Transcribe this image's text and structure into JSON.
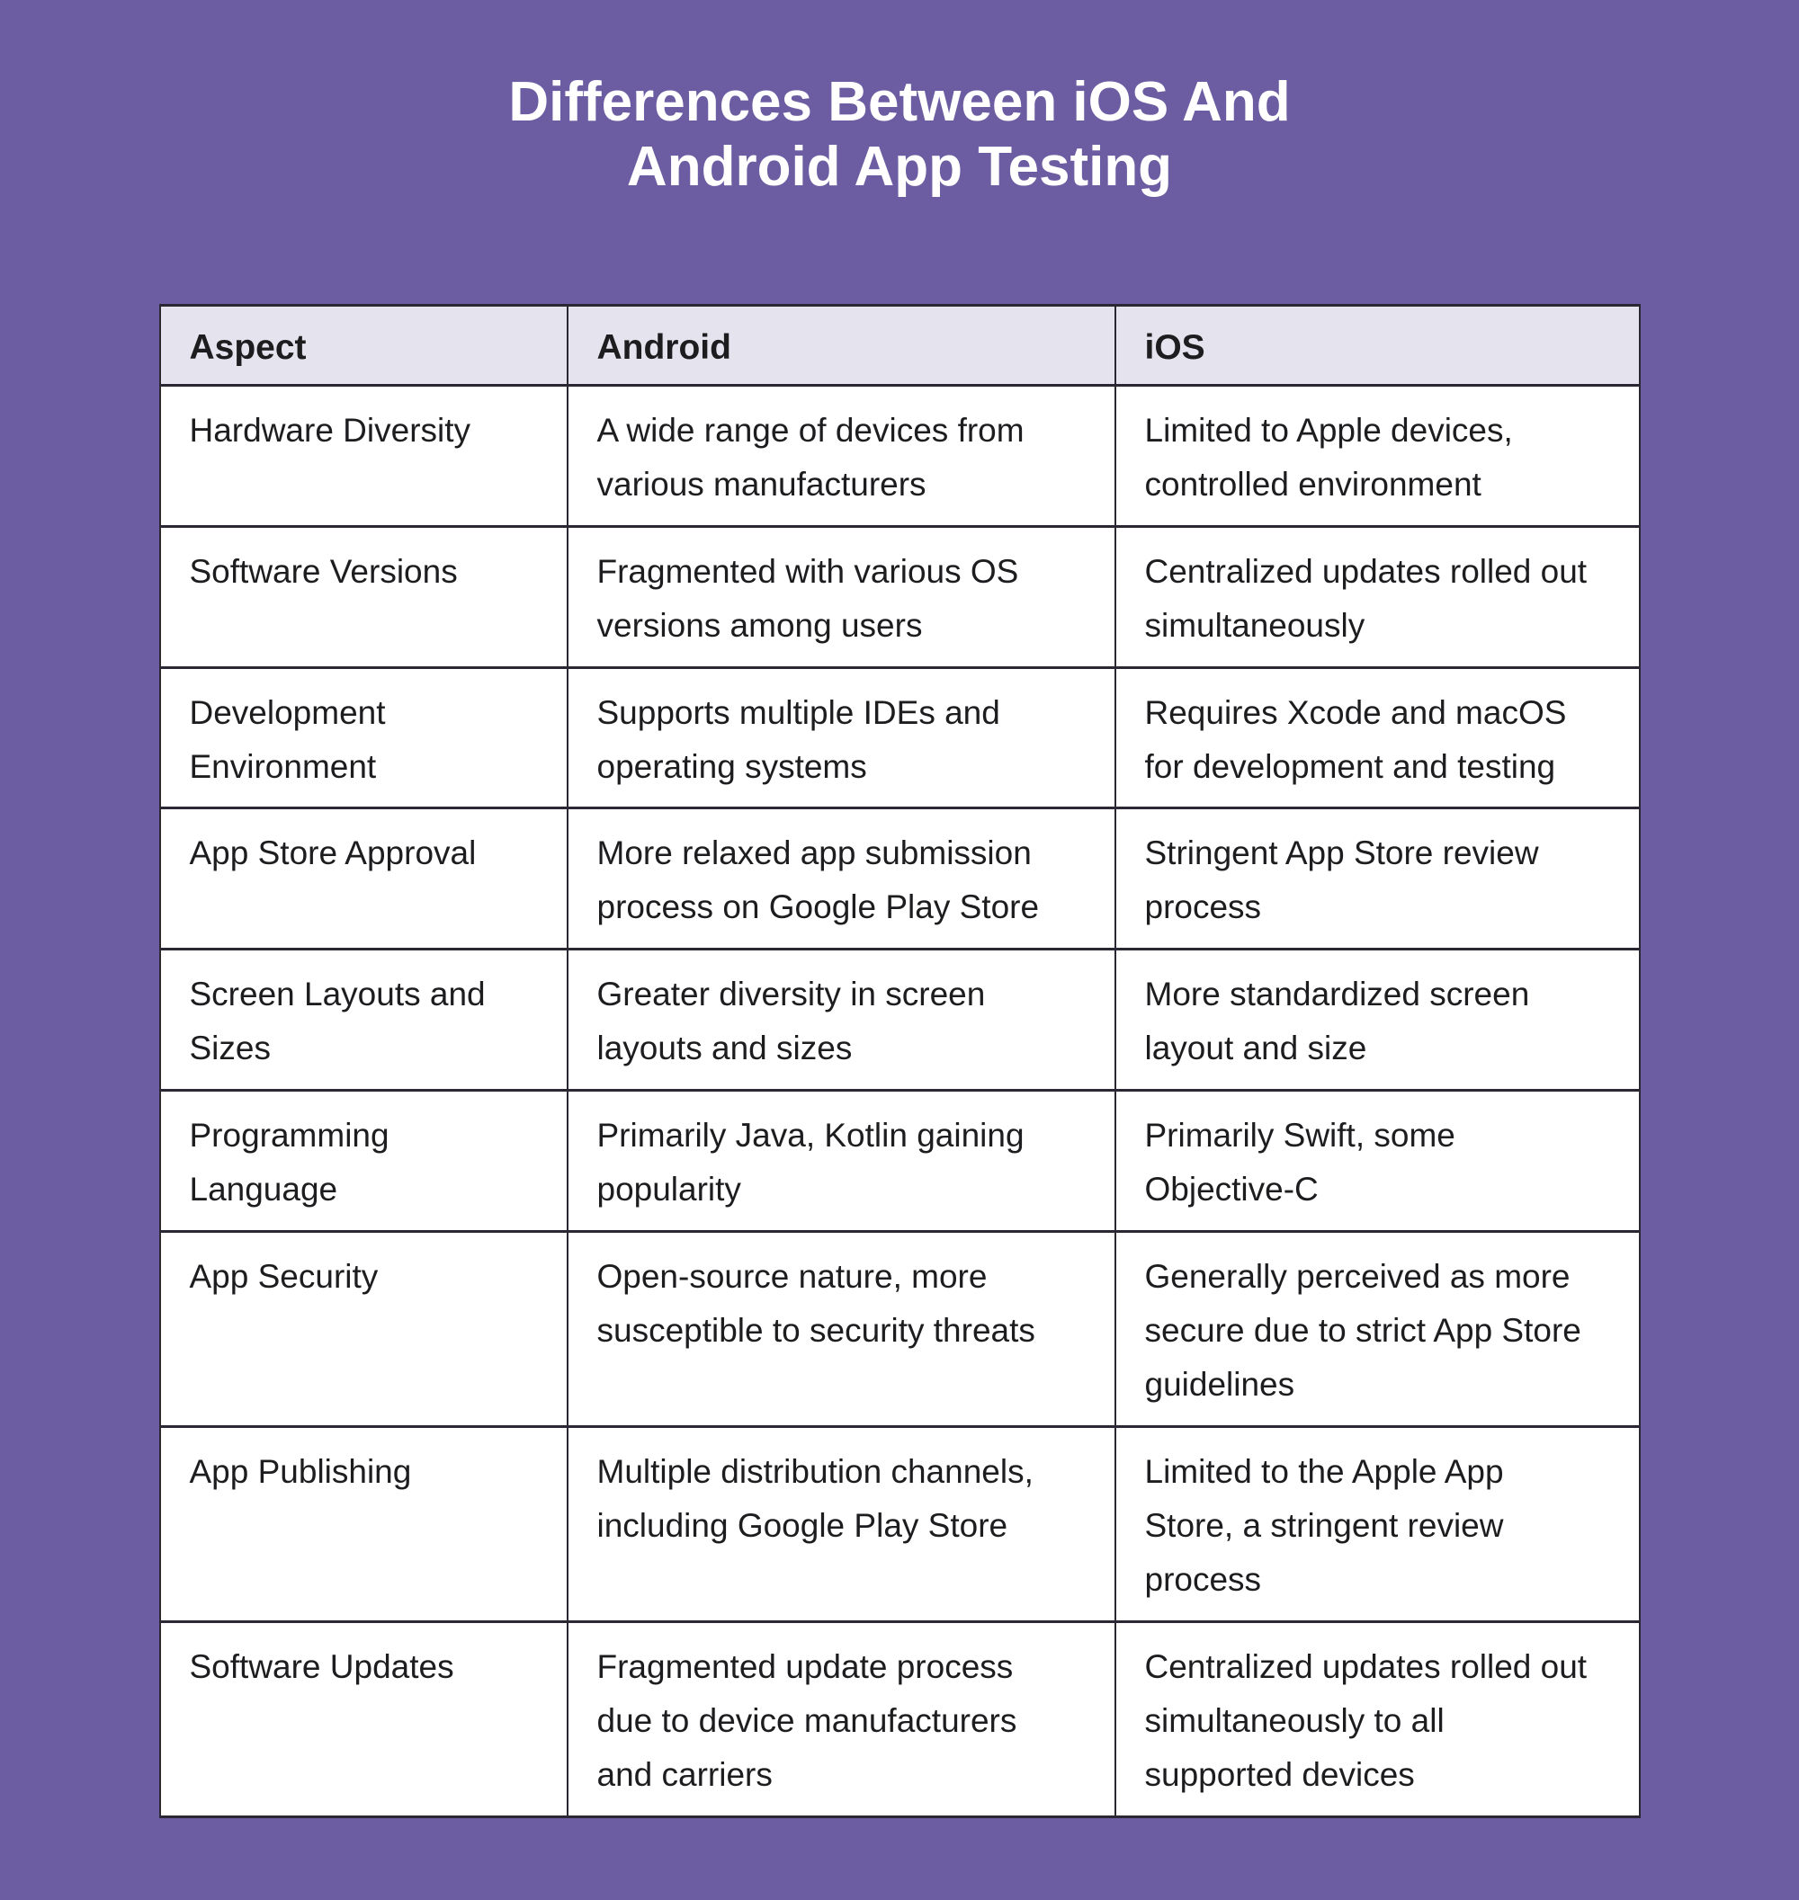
{
  "title": {
    "line1": "Differences Between iOS And",
    "line2": "Android App Testing"
  },
  "theme": {
    "background": "#6c5ca1",
    "header_bg": "#e5e3ed",
    "cell_bg": "#ffffff",
    "border": "#2b2833",
    "title_color": "#ffffff",
    "text_color": "#1d1d20"
  },
  "table": {
    "columns": [
      "Aspect",
      "Android",
      "iOS"
    ],
    "rows": [
      {
        "aspect": "Hardware Diversity",
        "android": "A wide range of devices from various manufacturers",
        "ios": "Limited to Apple devices, controlled environment"
      },
      {
        "aspect": "Software Versions",
        "android": "Fragmented with various OS versions among users",
        "ios": "Centralized updates rolled out simultaneously"
      },
      {
        "aspect": "Development Environment",
        "android": "Supports multiple IDEs and operating systems",
        "ios": "Requires Xcode and macOS for development and testing"
      },
      {
        "aspect": "App Store Approval",
        "android": "More relaxed app submission process on Google Play Store",
        "ios": "Stringent App Store review process"
      },
      {
        "aspect": "Screen Layouts and Sizes",
        "android": "Greater diversity in screen layouts and sizes",
        "ios": "More standardized screen layout and size"
      },
      {
        "aspect": "Programming Language",
        "android": "Primarily Java, Kotlin gaining popularity",
        "ios": "Primarily Swift, some Objective-C"
      },
      {
        "aspect": "App Security",
        "android": "Open-source nature, more susceptible to security threats",
        "ios": "Generally perceived as more secure due to strict App Store guidelines"
      },
      {
        "aspect": "App Publishing",
        "android": "Multiple distribution channels, including Google Play Store",
        "ios": "Limited to the Apple App Store, a stringent review process"
      },
      {
        "aspect": "Software Updates",
        "android": "Fragmented update process due to device manufacturers and carriers",
        "ios": "Centralized updates rolled out simultaneously to all supported devices"
      }
    ]
  }
}
